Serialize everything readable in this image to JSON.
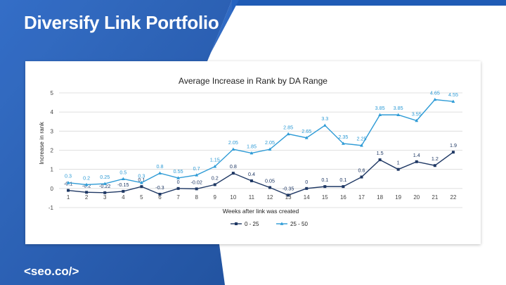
{
  "slide": {
    "title": "Diversify Link Portfolio",
    "logo": "<seo.co/>"
  },
  "colors": {
    "brand_blue": "#1f5bb5",
    "dark_blue": "#174a9c",
    "series_0_25": "#1f3864",
    "series_25_50": "#2e9bd6"
  },
  "chart_data": {
    "type": "line",
    "title": "Average Increase in Rank by DA Range",
    "xlabel": "Weeks after link was created",
    "ylabel": "Increase in rank",
    "ylim": [
      -1,
      5
    ],
    "yticks": [
      -1,
      0,
      1,
      2,
      3,
      4,
      5
    ],
    "grid": true,
    "legend_position": "bottom",
    "categories": [
      "1",
      "2",
      "3",
      "4",
      "5",
      "6",
      "7",
      "8",
      "9",
      "10",
      "11",
      "12",
      "13",
      "14",
      "15",
      "16",
      "17",
      "18",
      "19",
      "20",
      "21",
      "22"
    ],
    "series": [
      {
        "name": "0 - 25",
        "color": "#1f3864",
        "marker": "square",
        "values": [
          -0.1,
          -0.2,
          -0.22,
          -0.15,
          0.1,
          -0.3,
          0,
          -0.02,
          0.2,
          0.8,
          0.4,
          0.05,
          -0.35,
          0,
          0.1,
          0.1,
          0.6,
          1.5,
          1,
          1.4,
          1.2,
          1.9
        ],
        "labels": [
          "-0.1",
          "-0.2",
          "-0.22",
          "-0.15",
          "0.1",
          "-0.3",
          "0",
          "-0.02",
          "0.2",
          "0.8",
          "0.4",
          "0.05",
          "-0.35",
          "0",
          "0.1",
          "0.1",
          "0.6",
          "1.5",
          "1",
          "1.4",
          "1.2",
          "1.9"
        ]
      },
      {
        "name": "25 - 50",
        "color": "#2e9bd6",
        "marker": "triangle",
        "values": [
          0.3,
          0.2,
          0.25,
          0.5,
          0.3,
          0.8,
          0.55,
          0.7,
          1.15,
          2.05,
          1.85,
          2.05,
          2.85,
          2.65,
          3.3,
          2.35,
          2.25,
          3.85,
          3.85,
          3.55,
          4.65,
          4.55
        ],
        "labels": [
          "0.3",
          "0.2",
          "0.25",
          "0.5",
          "0.3",
          "0.8",
          "0.55",
          "0.7",
          "1.15",
          "2.05",
          "1.85",
          "2.05",
          "2.85",
          "2.65",
          "3.3",
          "2.35",
          "2.25",
          "3.85",
          "3.85",
          "3.55",
          "4.65",
          "4.55"
        ]
      }
    ]
  }
}
